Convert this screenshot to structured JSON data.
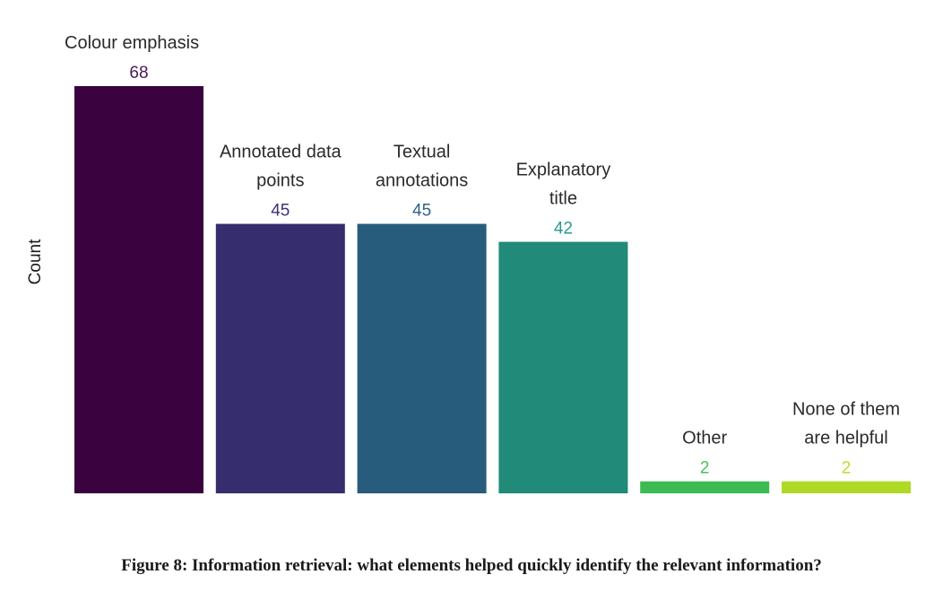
{
  "chart_data": {
    "type": "bar",
    "categories": [
      [
        "Colour emphasis"
      ],
      [
        "Annotated data",
        "points"
      ],
      [
        "Textual",
        "annotations"
      ],
      [
        "Explanatory",
        "title"
      ],
      [
        "Other"
      ],
      [
        "None of them",
        "are helpful"
      ]
    ],
    "values": [
      68,
      45,
      45,
      42,
      2,
      2
    ],
    "colors": [
      "#3b0240",
      "#352d6e",
      "#275c7d",
      "#218a78",
      "#3dbb52",
      "#aed925"
    ],
    "value_label_colors": [
      "#4a1a55",
      "#3a3479",
      "#2f6382",
      "#2a9a88",
      "#44c25a",
      "#b8de2e"
    ],
    "ylabel": "Count",
    "xlabel": "",
    "ylim": [
      0,
      68
    ],
    "grid": false,
    "legend": "none"
  },
  "caption": "Figure 8: Information retrieval: what elements helped quickly identify the relevant information?"
}
